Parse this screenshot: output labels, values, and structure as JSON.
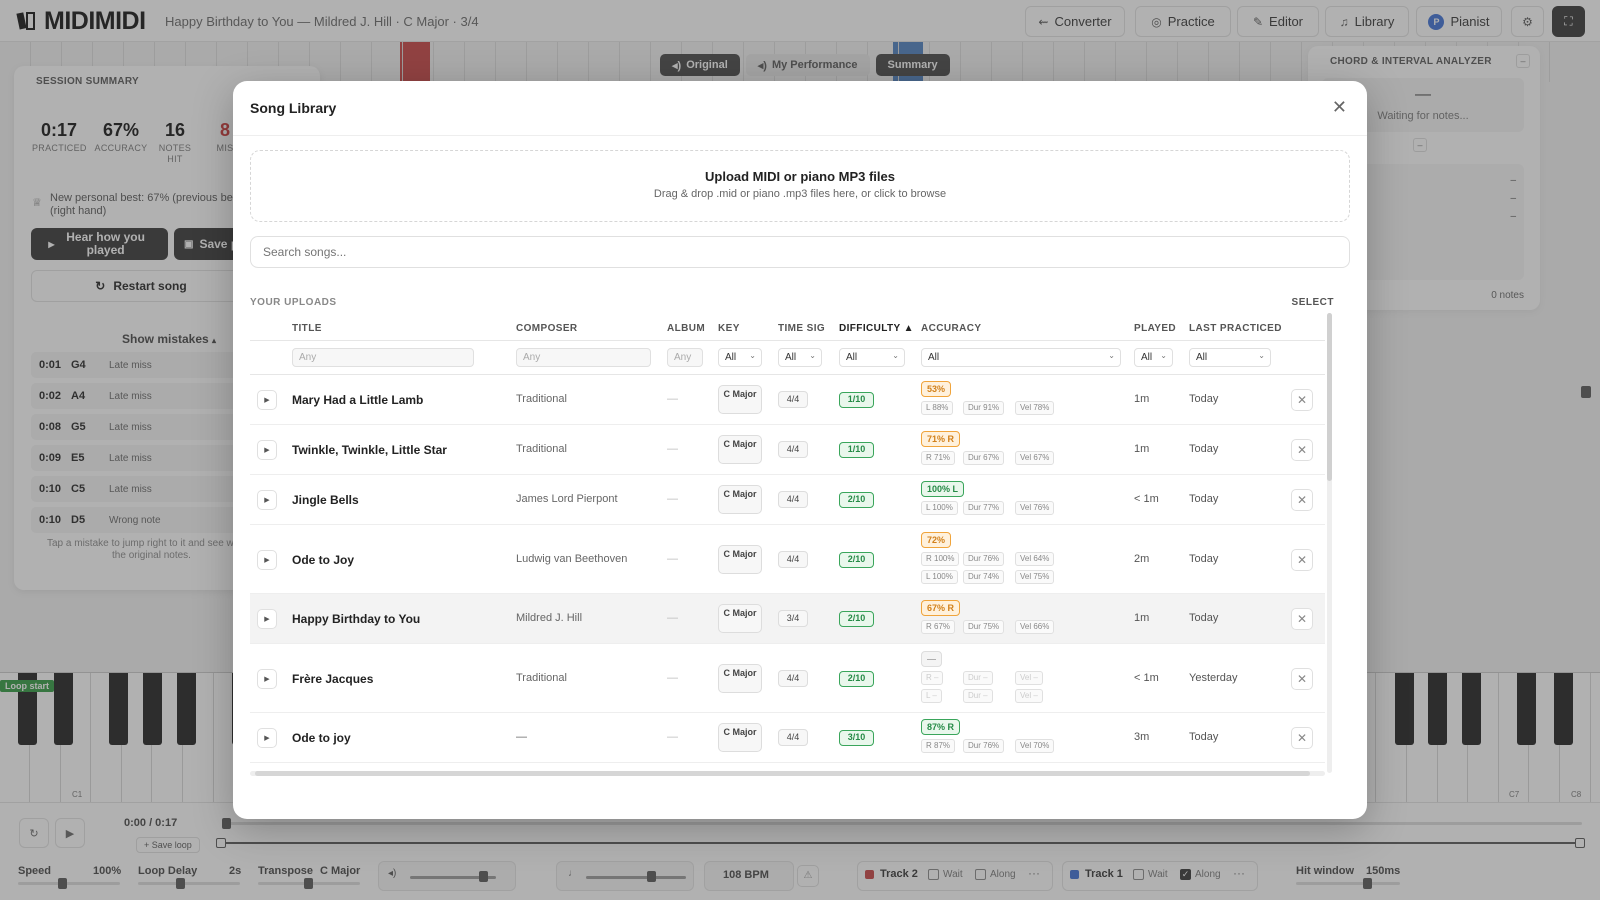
{
  "app": {
    "name": "MIDIMIDI",
    "song_info": "Happy Birthday to You — Mildred J. Hill · C Major · 3/4"
  },
  "nav": {
    "converter": "Converter",
    "practice": "Practice",
    "editor": "Editor",
    "library": "Library",
    "pianist": "Pianist",
    "pianist_initial": "P"
  },
  "view_tabs": {
    "original": "Original",
    "my_performance": "My Performance",
    "summary": "Summary"
  },
  "session": {
    "title": "SESSION SUMMARY",
    "stats": [
      {
        "value": "0:17",
        "label": "PRACTICED"
      },
      {
        "value": "67%",
        "label": "ACCURACY"
      },
      {
        "value": "16",
        "label": "NOTES HIT"
      },
      {
        "value": "8",
        "label": "MIS"
      }
    ],
    "personal_best": "New personal best: 67% (previous be (right hand)",
    "hear_button": "Hear how you played",
    "save_button": "Save p",
    "restart_button": "Restart song",
    "show_mistakes": "Show mistakes",
    "mistakes": [
      {
        "time": "0:01",
        "note": "G4",
        "desc": "Late miss"
      },
      {
        "time": "0:02",
        "note": "A4",
        "desc": "Late miss"
      },
      {
        "time": "0:08",
        "note": "G5",
        "desc": "Late miss"
      },
      {
        "time": "0:09",
        "note": "E5",
        "desc": "Late miss"
      },
      {
        "time": "0:10",
        "note": "C5",
        "desc": "Late miss"
      },
      {
        "time": "0:10",
        "note": "D5",
        "desc": "Wrong note"
      }
    ],
    "hint": "Tap a mistake to jump right to it and see wha to the original notes."
  },
  "chord": {
    "title": "CHORD & INTERVAL ANALYZER",
    "dash": "—",
    "waiting": "Waiting for notes...",
    "rows": [
      {
        "label": "tes",
        "value": "–"
      },
      {
        "label": "rmula",
        "value": "–"
      },
      {
        "label": "ality",
        "value": "–"
      },
      {
        "label": "tervals",
        "value": ""
      }
    ],
    "count": "0 notes"
  },
  "piano": {
    "loop_start": "Loop start",
    "label_c1": "C1",
    "label_c7": "C7",
    "label_c8": "C8"
  },
  "transport": {
    "time": "0:00 / 0:17",
    "save_loop": "+ Save loop",
    "speed_label": "Speed",
    "speed_value": "100%",
    "loop_delay_label": "Loop Delay",
    "loop_delay_value": "2s",
    "transpose_label": "Transpose",
    "transpose_value": "C Major",
    "bpm": "108 BPM",
    "track2": "Track 2",
    "track1": "Track 1",
    "wait": "Wait",
    "along": "Along",
    "hit_window_label": "Hit window",
    "hit_window_value": "150ms",
    "track1_along": true
  },
  "library": {
    "title": "Song Library",
    "upload_title": "Upload MIDI or piano MP3 files",
    "upload_sub": "Drag & drop .mid or piano .mp3 files here, or click to browse",
    "search_placeholder": "Search songs...",
    "section": "YOUR UPLOADS",
    "select": "SELECT",
    "columns": {
      "title": "TITLE",
      "composer": "COMPOSER",
      "album": "ALBUM",
      "key": "KEY",
      "time_sig": "TIME SIG",
      "difficulty": "DIFFICULTY ▲",
      "accuracy": "ACCURACY",
      "played": "PLAYED",
      "last_practiced": "LAST PRACTICED"
    },
    "filters": {
      "any": "Any",
      "all": "All"
    },
    "songs": [
      {
        "title": "Mary Had a Little Lamb",
        "composer": "Traditional",
        "album": "—",
        "key": "C Major",
        "time_sig": "4/4",
        "difficulty": "1/10",
        "accuracy": "53%",
        "accuracy_color": "orange",
        "sub_lines": [
          [
            "L 88%",
            "Dur 91%",
            "Vel 78%"
          ]
        ],
        "played": "1m",
        "last": "Today"
      },
      {
        "title": "Twinkle, Twinkle, Little Star",
        "composer": "Traditional",
        "album": "—",
        "key": "C Major",
        "time_sig": "4/4",
        "difficulty": "1/10",
        "accuracy": "71% R",
        "accuracy_color": "orange",
        "sub_lines": [
          [
            "R 71%",
            "Dur 67%",
            "Vel 67%"
          ]
        ],
        "played": "1m",
        "last": "Today"
      },
      {
        "title": "Jingle Bells",
        "composer": "James Lord Pierpont",
        "album": "—",
        "key": "C Major",
        "time_sig": "4/4",
        "difficulty": "2/10",
        "accuracy": "100% L",
        "accuracy_color": "green",
        "sub_lines": [
          [
            "L 100%",
            "Dur 77%",
            "Vel 76%"
          ]
        ],
        "played": "< 1m",
        "last": "Today"
      },
      {
        "title": "Ode to Joy",
        "composer": "Ludwig van Beethoven",
        "album": "—",
        "key": "C Major",
        "time_sig": "4/4",
        "difficulty": "2/10",
        "accuracy": "72%",
        "accuracy_color": "orange",
        "sub_lines": [
          [
            "R 100%",
            "Dur 76%",
            "Vel 64%"
          ],
          [
            "L 100%",
            "Dur 74%",
            "Vel 75%"
          ]
        ],
        "played": "2m",
        "last": "Today"
      },
      {
        "title": "Happy Birthday to You",
        "composer": "Mildred J. Hill",
        "album": "—",
        "key": "C Major",
        "time_sig": "3/4",
        "difficulty": "2/10",
        "accuracy": "67% R",
        "accuracy_color": "orange",
        "sub_lines": [
          [
            "R 67%",
            "Dur 75%",
            "Vel 66%"
          ]
        ],
        "played": "1m",
        "last": "Today"
      },
      {
        "title": "Frère Jacques",
        "composer": "Traditional",
        "album": "—",
        "key": "C Major",
        "time_sig": "4/4",
        "difficulty": "2/10",
        "accuracy": "—",
        "accuracy_color": "grey",
        "sub_lines": [
          [
            "R –",
            "Dur –",
            "Vel –"
          ],
          [
            "L –",
            "Dur –",
            "Vel –"
          ]
        ],
        "played": "< 1m",
        "last": "Yesterday"
      },
      {
        "title": "Ode to joy",
        "composer": "—",
        "album": "—",
        "key": "C Major",
        "time_sig": "4/4",
        "difficulty": "3/10",
        "accuracy": "87% R",
        "accuracy_color": "green",
        "sub_lines": [
          [
            "R 87%",
            "Dur 76%",
            "Vel 70%"
          ]
        ],
        "played": "3m",
        "last": "Today"
      }
    ]
  }
}
